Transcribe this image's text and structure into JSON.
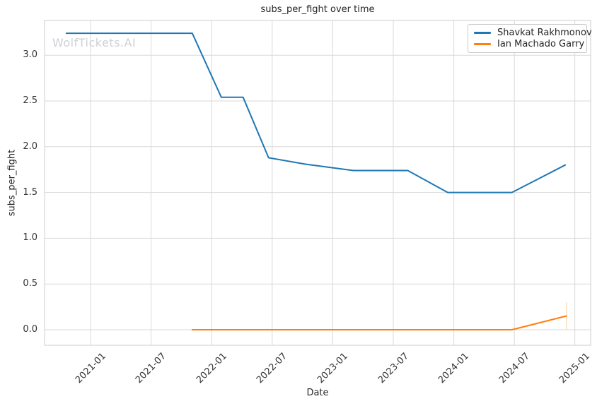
{
  "chart_data": {
    "type": "line",
    "title": "subs_per_fight over time",
    "xlabel": "Date",
    "ylabel": "subs_per_fight",
    "watermark": "WolfTickets.AI",
    "grid": true,
    "legend_position": "upper right",
    "x_range": [
      2020.62,
      2025.13
    ],
    "y_range": [
      -0.17,
      3.38
    ],
    "x_ticks": [
      {
        "value": 2021.0,
        "label": "2021-01"
      },
      {
        "value": 2021.5,
        "label": "2021-07"
      },
      {
        "value": 2022.0,
        "label": "2022-01"
      },
      {
        "value": 2022.5,
        "label": "2022-07"
      },
      {
        "value": 2023.0,
        "label": "2023-01"
      },
      {
        "value": 2023.5,
        "label": "2023-07"
      },
      {
        "value": 2024.0,
        "label": "2024-01"
      },
      {
        "value": 2024.5,
        "label": "2024-07"
      },
      {
        "value": 2025.0,
        "label": "2025-01"
      }
    ],
    "y_ticks": [
      {
        "value": 0.0,
        "label": "0.0"
      },
      {
        "value": 0.5,
        "label": "0.5"
      },
      {
        "value": 1.0,
        "label": "1.0"
      },
      {
        "value": 1.5,
        "label": "1.5"
      },
      {
        "value": 2.0,
        "label": "2.0"
      },
      {
        "value": 2.5,
        "label": "2.5"
      },
      {
        "value": 3.0,
        "label": "3.0"
      }
    ],
    "series": [
      {
        "name": "Shavkat Rakhmonov",
        "color": "#1f77b4",
        "points": [
          [
            2020.8,
            3.24
          ],
          [
            2021.84,
            3.24
          ],
          [
            2022.08,
            2.54
          ],
          [
            2022.26,
            2.54
          ],
          [
            2022.47,
            1.88
          ],
          [
            2022.77,
            1.81
          ],
          [
            2023.0,
            1.77
          ],
          [
            2023.17,
            1.74
          ],
          [
            2023.62,
            1.74
          ],
          [
            2023.95,
            1.5
          ],
          [
            2024.48,
            1.5
          ],
          [
            2024.92,
            1.8
          ]
        ]
      },
      {
        "name": "Ian Machado Garry",
        "color": "#ff7f0e",
        "points": [
          [
            2021.84,
            0.0
          ],
          [
            2024.48,
            0.0
          ],
          [
            2024.93,
            0.15
          ]
        ],
        "error_bar": {
          "x": 2024.93,
          "y_low": 0.0,
          "y_high": 0.3
        }
      }
    ],
    "colors": {
      "grid": "#d9d9d9",
      "plot_border": "#cccccc",
      "tick_text": "#333333",
      "title_text": "#262626",
      "watermark_text": "#cfd0d6"
    }
  }
}
